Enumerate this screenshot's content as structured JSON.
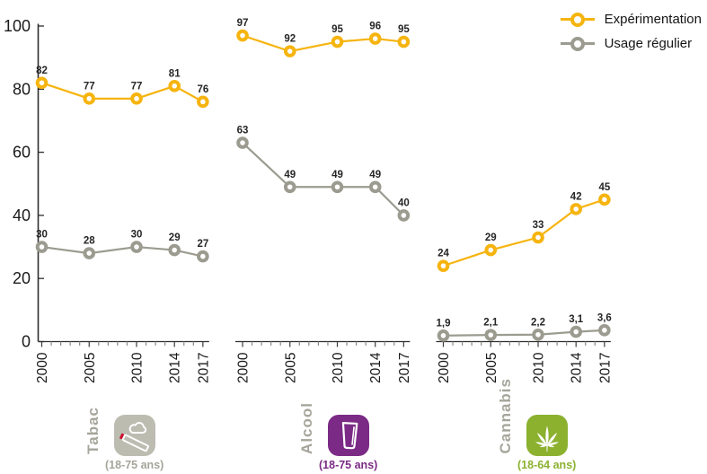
{
  "legend": {
    "items": [
      {
        "label": "Expérimentation",
        "color": "#F6B40F"
      },
      {
        "label": "Usage régulier",
        "color": "#9C9B90"
      }
    ]
  },
  "icon_colors": {
    "cigarette_tip": "#CE0E2D"
  },
  "chart_data": {
    "type": "line",
    "x": [
      2000,
      2005,
      2010,
      2014,
      2017
    ],
    "x_range": [
      2000,
      2017
    ],
    "ylim": [
      0,
      100
    ],
    "yticks": [
      0,
      20,
      40,
      60,
      80,
      100
    ],
    "grid": false,
    "legend_position": "top-right",
    "panels": [
      {
        "name": "Tabac",
        "age_range": "(18-75 ans)",
        "icon": "cigarette-icon",
        "color": "#BCBCB1",
        "age_color": "#A6A59B",
        "series": [
          {
            "name": "Expérimentation",
            "color": "#F6B40F",
            "values": [
              82,
              77,
              77,
              81,
              76
            ],
            "labels": [
              "82",
              "77",
              "77",
              "81",
              "76"
            ]
          },
          {
            "name": "Usage régulier",
            "color": "#9C9B90",
            "values": [
              30,
              28,
              30,
              29,
              27
            ],
            "labels": [
              "30",
              "28",
              "30",
              "29",
              "27"
            ]
          }
        ]
      },
      {
        "name": "Alcool",
        "age_range": "(18-75 ans)",
        "icon": "beer-glass-icon",
        "color": "#7B2B85",
        "age_color": "#7B2B85",
        "series": [
          {
            "name": "Expérimentation",
            "color": "#F6B40F",
            "values": [
              97,
              92,
              95,
              96,
              95
            ],
            "labels": [
              "97",
              "92",
              "95",
              "96",
              "95"
            ]
          },
          {
            "name": "Usage régulier",
            "color": "#9C9B90",
            "values": [
              63,
              49,
              49,
              49,
              40
            ],
            "labels": [
              "63",
              "49",
              "49",
              "49",
              "40"
            ]
          }
        ]
      },
      {
        "name": "Cannabis",
        "age_range": "(18-64 ans)",
        "icon": "cannabis-leaf-icon",
        "color": "#8CB12F",
        "age_color": "#8CB12F",
        "series": [
          {
            "name": "Expérimentation",
            "color": "#F6B40F",
            "values": [
              24,
              29,
              33,
              42,
              45
            ],
            "labels": [
              "24",
              "29",
              "33",
              "42",
              "45"
            ]
          },
          {
            "name": "Usage régulier",
            "color": "#9C9B90",
            "values": [
              1.9,
              2.1,
              2.2,
              3.1,
              3.6
            ],
            "labels": [
              "1,9",
              "2,1",
              "2,2",
              "3,1",
              "3,6"
            ]
          }
        ]
      }
    ]
  }
}
